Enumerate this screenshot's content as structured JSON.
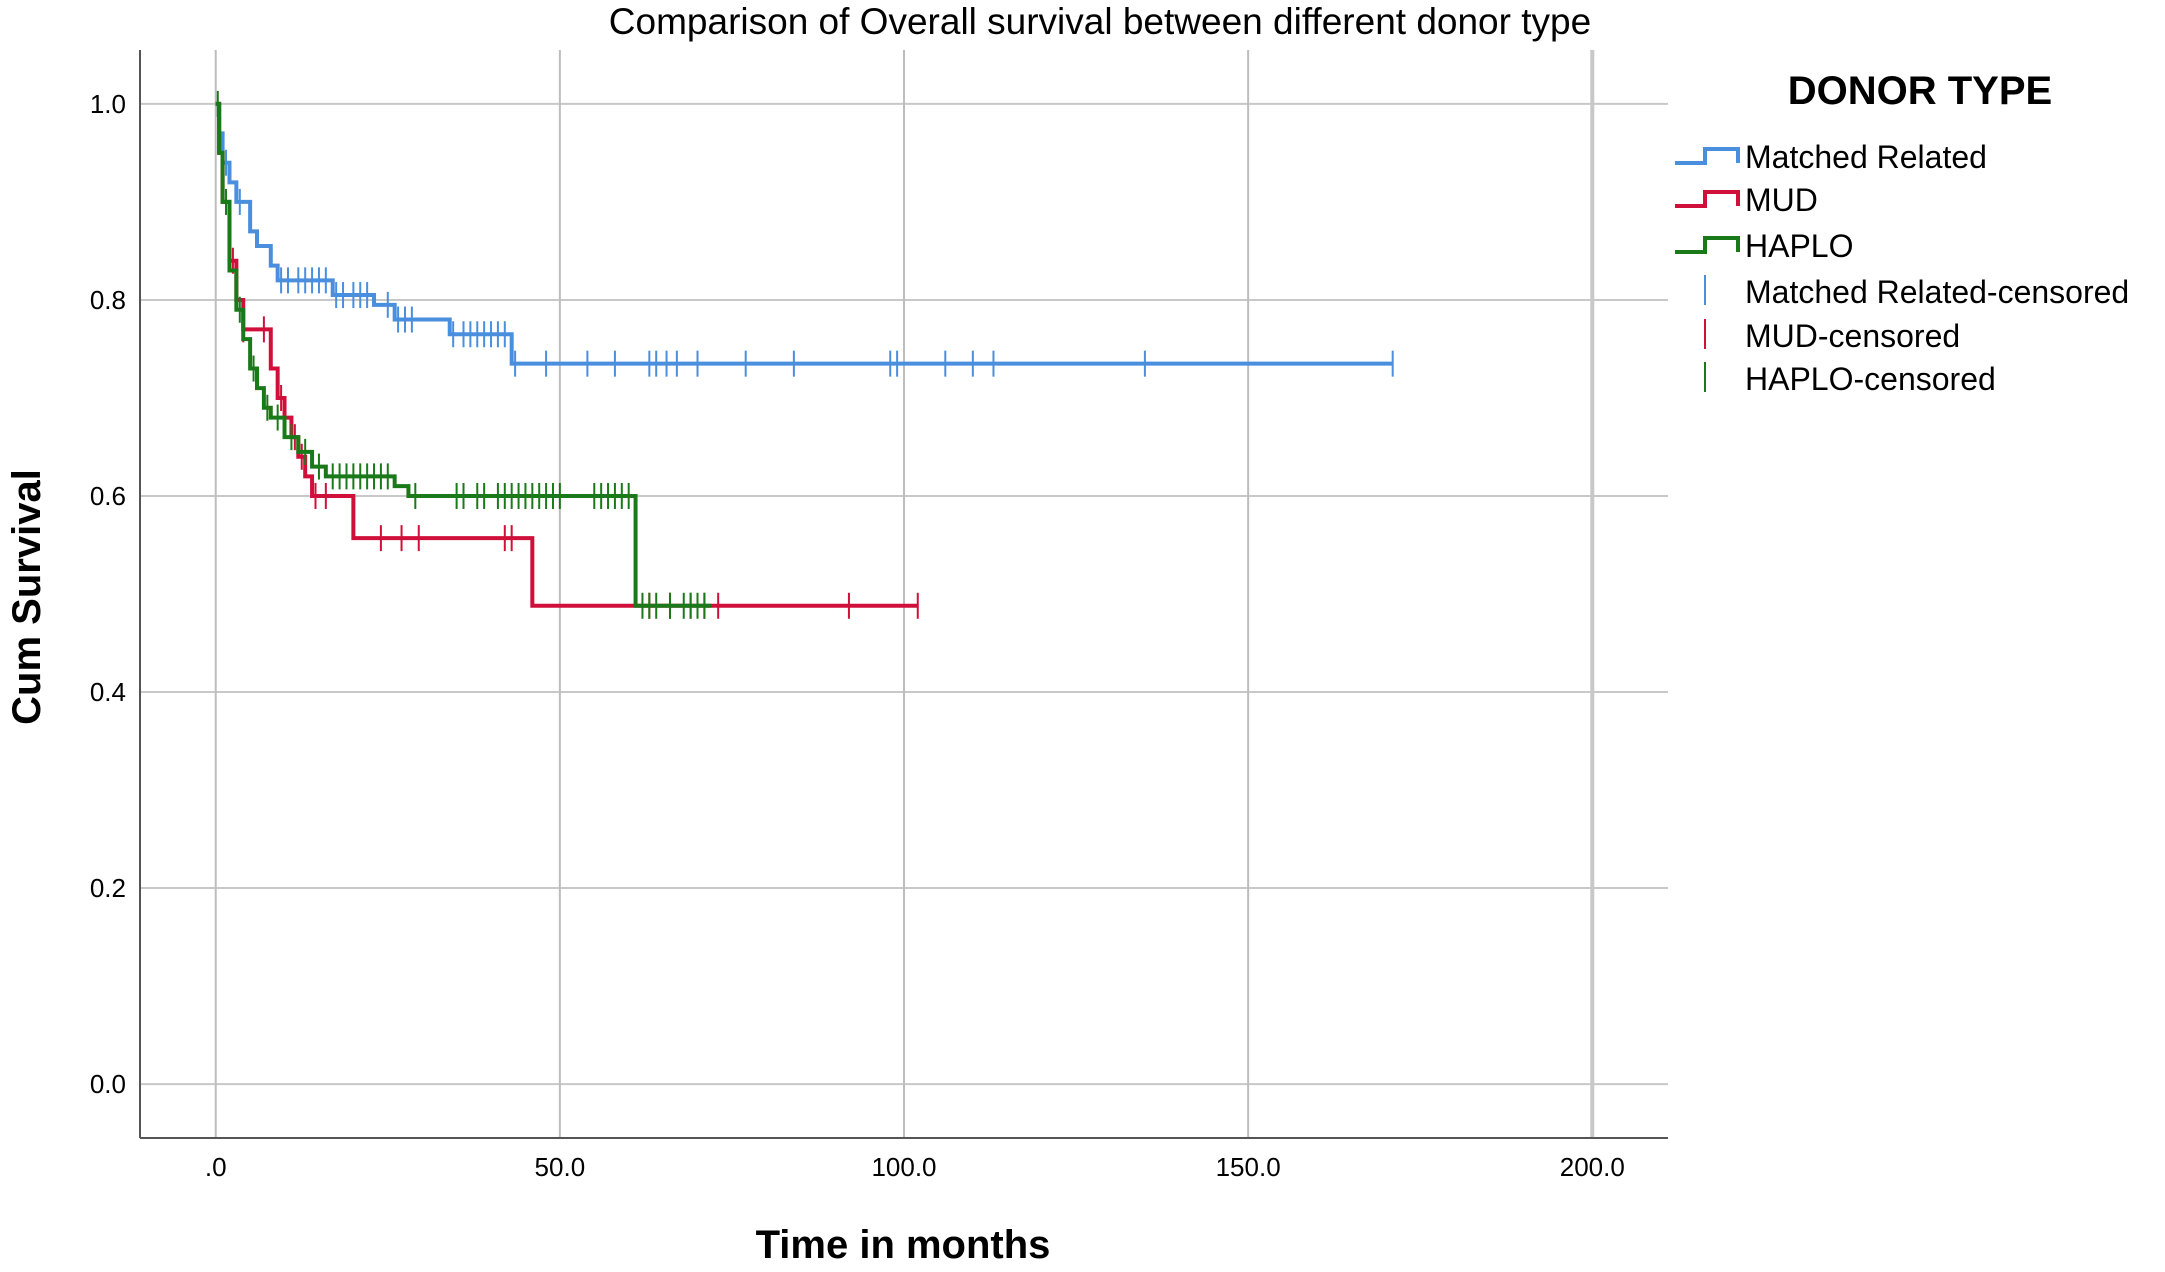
{
  "chart_data": {
    "type": "line",
    "subtype": "kaplan-meier-step",
    "title": "Comparison of Overall survival between different donor type",
    "xlabel": "Time in months",
    "ylabel": "Cum Survival",
    "xlim": [
      -11,
      211
    ],
    "ylim": [
      -0.055,
      1.055
    ],
    "xticks": [
      0,
      50,
      100,
      150,
      200
    ],
    "xtick_labels": [
      ".0",
      "50.0",
      "100.0",
      "150.0",
      "200.0"
    ],
    "yticks": [
      0.0,
      0.2,
      0.4,
      0.6,
      0.8,
      1.0
    ],
    "ytick_labels": [
      "0.0",
      "0.2",
      "0.4",
      "0.6",
      "0.8",
      "1.0"
    ],
    "grid": true,
    "legend": {
      "title": "DONOR TYPE",
      "position": "right",
      "series_labels": [
        "Matched Related",
        "MUD",
        "HAPLO"
      ],
      "censored_labels": [
        "Matched Related-censored",
        "MUD-censored",
        "HAPLO-censored"
      ]
    },
    "series": [
      {
        "name": "Matched Related",
        "color": "#4a8ede",
        "steps": [
          [
            0,
            1.0
          ],
          [
            0.5,
            0.97
          ],
          [
            1,
            0.94
          ],
          [
            2,
            0.92
          ],
          [
            3,
            0.9
          ],
          [
            5,
            0.87
          ],
          [
            6,
            0.855
          ],
          [
            8,
            0.835
          ],
          [
            9,
            0.82
          ],
          [
            17,
            0.805
          ],
          [
            23,
            0.795
          ],
          [
            26,
            0.78
          ],
          [
            34,
            0.765
          ],
          [
            43,
            0.735
          ],
          [
            171,
            0.735
          ]
        ],
        "censored": [
          1.5,
          3.5,
          9.5,
          10.5,
          12,
          13,
          14,
          15,
          16,
          17.5,
          18.5,
          20,
          21,
          22,
          25,
          26.5,
          27.5,
          28.5,
          34.5,
          36,
          37,
          38,
          39,
          40,
          41,
          42,
          43.5,
          48,
          54,
          58,
          63,
          64,
          65.5,
          67,
          70,
          77,
          84,
          98,
          99,
          106,
          110,
          113,
          135,
          171
        ]
      },
      {
        "name": "MUD",
        "color": "#d0103a",
        "steps": [
          [
            0,
            1.0
          ],
          [
            0.5,
            0.95
          ],
          [
            1,
            0.9
          ],
          [
            2,
            0.84
          ],
          [
            3,
            0.8
          ],
          [
            4,
            0.77
          ],
          [
            8,
            0.73
          ],
          [
            9,
            0.7
          ],
          [
            10,
            0.68
          ],
          [
            11,
            0.66
          ],
          [
            12,
            0.64
          ],
          [
            13,
            0.62
          ],
          [
            14,
            0.6
          ],
          [
            20,
            0.557
          ],
          [
            46,
            0.488
          ],
          [
            102,
            0.488
          ]
        ],
        "censored": [
          2.5,
          4,
          7,
          9.5,
          11.5,
          12.5,
          14.5,
          16,
          24,
          27,
          29.5,
          42,
          43,
          63,
          66,
          69,
          71,
          73,
          92,
          102
        ]
      },
      {
        "name": "HAPLO",
        "color": "#1a7a1a",
        "steps": [
          [
            0,
            1.0
          ],
          [
            0.5,
            0.95
          ],
          [
            1,
            0.9
          ],
          [
            2,
            0.83
          ],
          [
            3,
            0.79
          ],
          [
            4,
            0.76
          ],
          [
            5,
            0.73
          ],
          [
            6,
            0.71
          ],
          [
            7,
            0.69
          ],
          [
            8,
            0.68
          ],
          [
            10,
            0.66
          ],
          [
            12,
            0.645
          ],
          [
            14,
            0.63
          ],
          [
            16,
            0.62
          ],
          [
            26,
            0.61
          ],
          [
            28,
            0.6
          ],
          [
            61,
            0.488
          ],
          [
            72,
            0.488
          ]
        ],
        "censored": [
          0.3,
          1.5,
          3.5,
          5.5,
          7.5,
          9,
          11,
          13,
          15,
          17,
          18,
          19,
          20,
          21,
          22,
          23,
          24,
          25,
          29,
          35,
          36,
          38,
          39,
          41,
          42,
          43,
          44,
          45,
          46,
          47,
          48,
          49,
          50,
          55,
          56,
          57,
          58,
          59,
          60,
          62,
          63,
          64,
          66,
          68,
          69,
          70,
          71
        ]
      }
    ]
  }
}
